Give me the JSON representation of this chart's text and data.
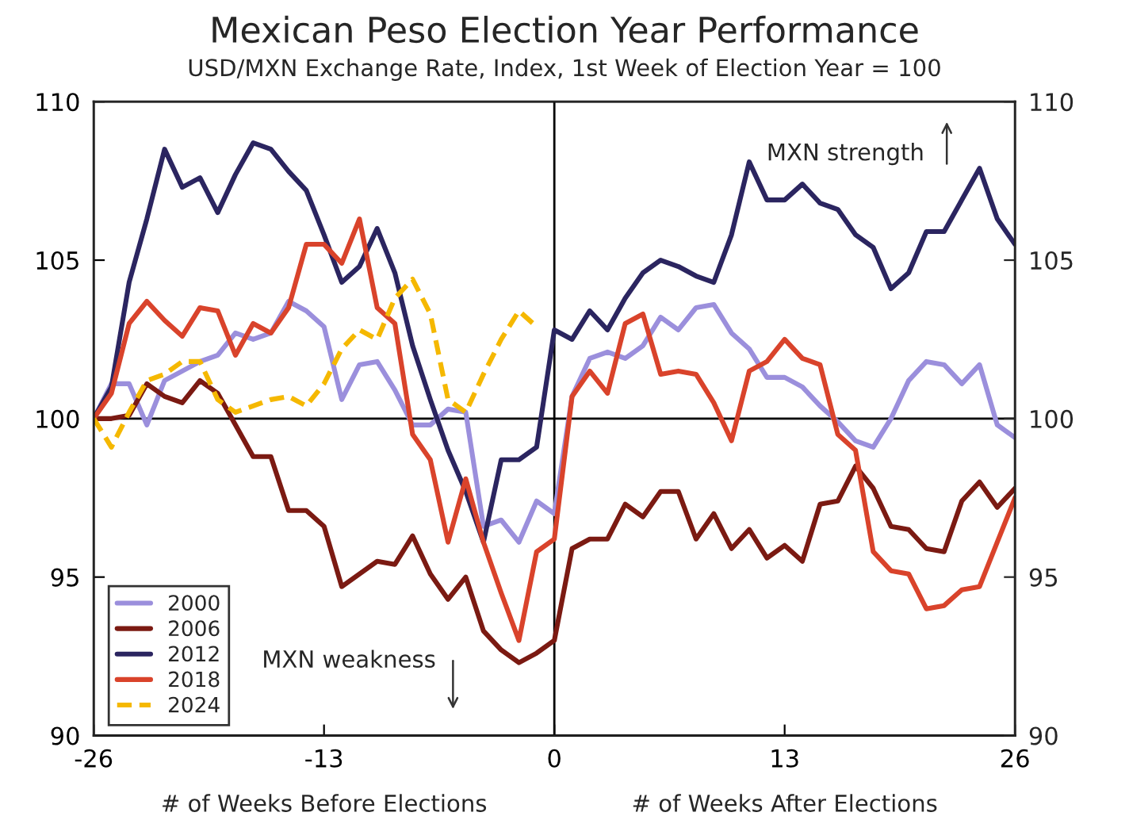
{
  "chart_data": {
    "type": "line",
    "title": "Mexican Peso Election Year Performance",
    "subtitle": "USD/MXN Exchange Rate, Index, 1st Week of Election Year = 100",
    "x": [
      -26,
      -25,
      -24,
      -23,
      -22,
      -21,
      -20,
      -19,
      -18,
      -17,
      -16,
      -15,
      -14,
      -13,
      -12,
      -11,
      -10,
      -9,
      -8,
      -7,
      -6,
      -5,
      -4,
      -3,
      -2,
      -1,
      0,
      1,
      2,
      3,
      4,
      5,
      6,
      7,
      8,
      9,
      10,
      11,
      12,
      13,
      14,
      15,
      16,
      17,
      18,
      19,
      20,
      21,
      22,
      23,
      24,
      25,
      26
    ],
    "series": [
      {
        "name": "2000",
        "color": "#9b8fdc",
        "values": [
          100,
          101.1,
          101.1,
          99.8,
          101.2,
          101.5,
          101.8,
          102.0,
          102.7,
          102.5,
          102.7,
          103.7,
          103.4,
          102.9,
          100.6,
          101.7,
          101.8,
          100.9,
          99.8,
          99.8,
          100.3,
          100.2,
          96.6,
          96.8,
          96.1,
          97.4,
          97.0,
          100.7,
          101.9,
          102.1,
          101.9,
          102.3,
          103.2,
          102.8,
          103.5,
          103.6,
          102.7,
          102.2,
          101.3,
          101.3,
          101.0,
          100.4,
          99.9,
          99.3,
          99.1,
          100.0,
          101.2,
          101.8,
          101.7,
          101.1,
          101.7,
          99.8,
          99.4
        ]
      },
      {
        "name": "2006",
        "color": "#7b1a12",
        "values": [
          100,
          100,
          100.1,
          101.1,
          100.7,
          100.5,
          101.2,
          100.8,
          99.8,
          98.8,
          98.8,
          97.1,
          97.1,
          96.6,
          94.7,
          95.1,
          95.5,
          95.4,
          96.3,
          95.1,
          94.3,
          95.0,
          93.3,
          92.7,
          92.3,
          92.6,
          93.0,
          95.9,
          96.2,
          96.2,
          97.3,
          96.9,
          97.7,
          97.7,
          96.2,
          97.0,
          95.9,
          96.5,
          95.6,
          96.0,
          95.5,
          97.3,
          97.4,
          98.5,
          97.8,
          96.6,
          96.5,
          95.9,
          95.8,
          97.4,
          98.0,
          97.2,
          97.8
        ]
      },
      {
        "name": "2012",
        "color": "#2b2560",
        "values": [
          100,
          101.0,
          104.3,
          106.3,
          108.5,
          107.3,
          107.6,
          106.5,
          107.7,
          108.7,
          108.5,
          107.8,
          107.2,
          105.8,
          104.3,
          104.8,
          106.0,
          104.6,
          102.3,
          100.6,
          99.0,
          97.7,
          96.1,
          98.7,
          98.7,
          99.1,
          102.8,
          102.5,
          103.4,
          102.8,
          103.8,
          104.6,
          105.0,
          104.8,
          104.5,
          104.3,
          105.8,
          108.1,
          106.9,
          106.9,
          107.4,
          106.8,
          106.6,
          105.8,
          105.4,
          104.1,
          104.6,
          105.9,
          105.9,
          106.9,
          107.9,
          106.3,
          105.5
        ]
      },
      {
        "name": "2018",
        "color": "#d9432b",
        "values": [
          100,
          100.8,
          103.0,
          103.7,
          103.1,
          102.6,
          103.5,
          103.4,
          102.0,
          103.0,
          102.7,
          103.5,
          105.5,
          105.5,
          104.9,
          106.3,
          103.5,
          103.0,
          99.5,
          98.7,
          96.1,
          98.1,
          96.1,
          94.5,
          93.0,
          95.8,
          96.2,
          100.7,
          101.5,
          100.8,
          103.0,
          103.3,
          101.4,
          101.5,
          101.4,
          100.5,
          99.3,
          101.5,
          101.8,
          102.5,
          101.9,
          101.7,
          99.5,
          99.0,
          95.8,
          95.2,
          95.1,
          94.0,
          94.1,
          94.6,
          94.7,
          96.1,
          97.5
        ]
      },
      {
        "name": "2024",
        "color": "#f5b800",
        "line_style": "dashed",
        "values": [
          100,
          99.1,
          100.2,
          101.2,
          101.4,
          101.8,
          101.8,
          100.6,
          100.2,
          100.4,
          100.6,
          100.7,
          100.4,
          101.1,
          102.2,
          102.8,
          102.5,
          103.8,
          104.4,
          103.3,
          100.6,
          100.2,
          101.4,
          102.5,
          103.4,
          102.9,
          null,
          null,
          null,
          null,
          null,
          null,
          null,
          null,
          null,
          null,
          null,
          null,
          null,
          null,
          null,
          null,
          null,
          null,
          null,
          null,
          null,
          null,
          null,
          null,
          null,
          null,
          null
        ]
      }
    ],
    "xlim": [
      -26,
      26
    ],
    "xticks": [
      -26,
      -13,
      0,
      13,
      26
    ],
    "ylim": [
      90,
      110
    ],
    "yticks": [
      90,
      95,
      100,
      105,
      110
    ],
    "y2lim": [
      90,
      110
    ],
    "y2ticks": [
      90,
      95,
      100,
      105,
      110
    ],
    "ref_lines": [
      {
        "axis": "y",
        "value": 100,
        "color": "#000000"
      },
      {
        "axis": "x",
        "value": 0,
        "color": "#000000"
      }
    ],
    "annotations": [
      "MXN strength",
      "MXN weakness",
      "# of Weeks Before Elections",
      "# of Weeks After Elections"
    ],
    "grid": false,
    "legend": "bottom left"
  }
}
